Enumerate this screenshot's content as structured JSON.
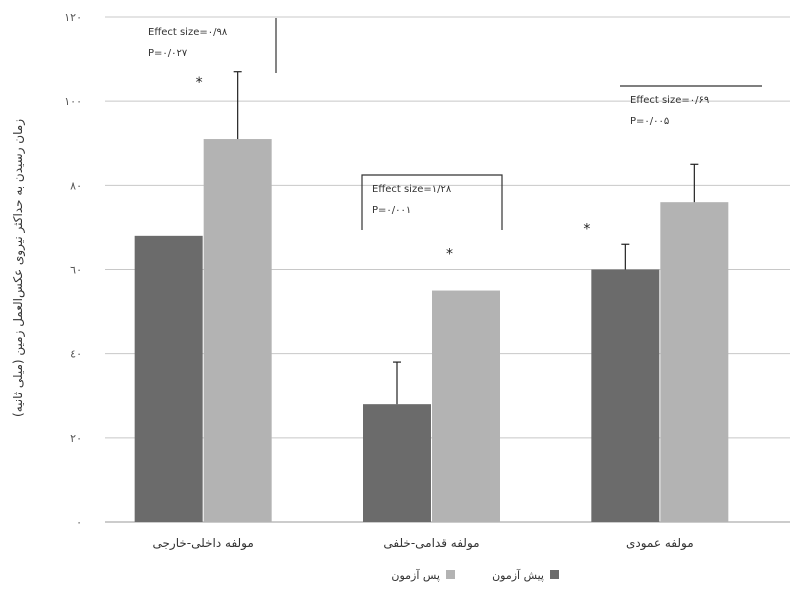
{
  "chart_data": {
    "type": "bar",
    "title": "",
    "xlabel": "",
    "ylabel": "زمان رسیدن به حداکثر نیروی عکس‌العمل زمین (میلی ثانیه)",
    "ylim": [
      0,
      120
    ],
    "yticks": [
      "٠",
      "٢٠",
      "٤٠",
      "٦٠",
      "٨٠",
      "١٠٠",
      "١٢٠"
    ],
    "grid": true,
    "legend_position": "bottom",
    "categories": [
      "مولفه داخلی-خارجی",
      "مولفه قدامی-خلفی",
      "مولفه عمودی"
    ],
    "series": [
      {
        "name": "پیش آزمون",
        "color": "#6b6b6b",
        "values": [
          68,
          28,
          60
        ],
        "errors": [
          0,
          10,
          6
        ]
      },
      {
        "name": "پس آزمون",
        "color": "#b3b3b3",
        "values": [
          91,
          55,
          76
        ],
        "errors": [
          16,
          0,
          9
        ]
      }
    ],
    "annotations": [
      {
        "text": "Effect size=۰/۹۸",
        "text2": "P=۰/۰۲۷"
      },
      {
        "text": "Effect size=۱/۲۸",
        "text2": "P=۰/۰۰۱"
      },
      {
        "text": "Effect size=۰/۶۹",
        "text2": "P=۰/۰۰۵"
      }
    ],
    "markers": [
      "*",
      "*",
      "*"
    ]
  }
}
